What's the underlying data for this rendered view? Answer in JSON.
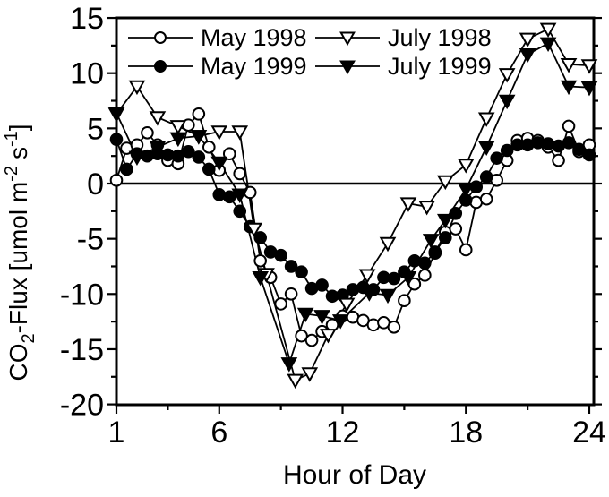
{
  "figure": {
    "background_color": "#ffffff",
    "ink_color": "#000000"
  },
  "axes": {
    "x": {
      "label": "Hour of Day",
      "range": [
        1,
        24
      ],
      "major_ticks": [
        1,
        6,
        12,
        18,
        24
      ],
      "minor_ticks": [
        3.5,
        9,
        15,
        21
      ]
    },
    "y": {
      "label": "CO2-Flux [umol m-2 s-1]",
      "label_parts": {
        "base1": "CO",
        "sub1": "2",
        "base2": "-Flux [umol m",
        "sup1": "-2",
        "base3": "s",
        "sup2": "-1",
        "base4": "]"
      },
      "range": [
        -20,
        15
      ],
      "major_ticks": [
        15,
        10,
        5,
        0,
        -5,
        -10,
        -15,
        -20
      ],
      "minor_ticks": [
        12.5,
        7.5,
        2.5,
        -2.5,
        -7.5,
        -12.5,
        -17.5
      ]
    }
  },
  "chart_data": {
    "type": "line",
    "grid": false,
    "zero_line_y": 0,
    "legend_position": "top-inside-two-columns",
    "series": [
      {
        "name": "May 1998",
        "marker": "circle-open",
        "points": [
          [
            1,
            0.3
          ],
          [
            1.5,
            3.2
          ],
          [
            2,
            3.5
          ],
          [
            2.5,
            4.6
          ],
          [
            3,
            3.5
          ],
          [
            3.5,
            2.1
          ],
          [
            4,
            1.8
          ],
          [
            4.5,
            5.3
          ],
          [
            5,
            6.3
          ],
          [
            5.5,
            3.3
          ],
          [
            6,
            1.2
          ],
          [
            6.5,
            2.7
          ],
          [
            7,
            0.9
          ],
          [
            7.5,
            -0.8
          ],
          [
            8,
            -7
          ],
          [
            8.5,
            -8.5
          ],
          [
            9,
            -10.9
          ],
          [
            9.5,
            -10
          ],
          [
            10,
            -13.8
          ],
          [
            10.5,
            -14.2
          ],
          [
            11,
            -13.4
          ],
          [
            11.5,
            -12.8
          ],
          [
            12,
            -12
          ],
          [
            12.5,
            -12.1
          ],
          [
            13,
            -12.4
          ],
          [
            13.5,
            -12.8
          ],
          [
            14,
            -12.6
          ],
          [
            14.5,
            -13
          ],
          [
            15,
            -10.6
          ],
          [
            15.5,
            -9.1
          ],
          [
            16,
            -8.3
          ],
          [
            16.5,
            -6.3
          ],
          [
            17,
            -4.4
          ],
          [
            17.5,
            -4.1
          ],
          [
            18,
            -6
          ],
          [
            18.5,
            -1.7
          ],
          [
            19,
            -1.4
          ],
          [
            19.5,
            0.3
          ],
          [
            20,
            2.1
          ],
          [
            20.5,
            3.9
          ],
          [
            21,
            4.1
          ],
          [
            21.5,
            3.9
          ],
          [
            22,
            3.3
          ],
          [
            22.5,
            2.1
          ],
          [
            23,
            5.2
          ],
          [
            23.5,
            2.9
          ],
          [
            24,
            3.5
          ]
        ]
      },
      {
        "name": "May 1999",
        "marker": "circle-filled",
        "points": [
          [
            1,
            4
          ],
          [
            1.5,
            1.3
          ],
          [
            2,
            2.7
          ],
          [
            2.5,
            2.5
          ],
          [
            3,
            2.7
          ],
          [
            3.5,
            2.6
          ],
          [
            4,
            2.5
          ],
          [
            4.5,
            2.9
          ],
          [
            5,
            2.4
          ],
          [
            5.5,
            1.3
          ],
          [
            6,
            -1
          ],
          [
            6.5,
            -1.2
          ],
          [
            7,
            -2.5
          ],
          [
            7.5,
            -3.9
          ],
          [
            8,
            -4.9
          ],
          [
            8.5,
            -6.2
          ],
          [
            9,
            -6.5
          ],
          [
            9.5,
            -7.5
          ],
          [
            10,
            -8
          ],
          [
            10.5,
            -9.5
          ],
          [
            11,
            -9.2
          ],
          [
            11.5,
            -10.2
          ],
          [
            12,
            -10.1
          ],
          [
            12.5,
            -9.6
          ],
          [
            13,
            -9.4
          ],
          [
            13.5,
            -9.6
          ],
          [
            14,
            -8.5
          ],
          [
            14.5,
            -8.6
          ],
          [
            15,
            -8
          ],
          [
            15.5,
            -7
          ],
          [
            16,
            -7.2
          ],
          [
            16.5,
            -6.2
          ],
          [
            17,
            -4.9
          ],
          [
            17.5,
            -2.7
          ],
          [
            18,
            -1.5
          ],
          [
            18.5,
            -0.3
          ],
          [
            19,
            0.6
          ],
          [
            19.5,
            2.3
          ],
          [
            20,
            3
          ],
          [
            20.5,
            3.5
          ],
          [
            21,
            3.5
          ],
          [
            21.5,
            3.7
          ],
          [
            22,
            3.6
          ],
          [
            22.5,
            3.4
          ],
          [
            23,
            3.7
          ],
          [
            23.5,
            3.1
          ],
          [
            24,
            2.6
          ]
        ]
      },
      {
        "name": "July 1998",
        "marker": "triangle-open",
        "points": [
          [
            1,
            6.3
          ],
          [
            2,
            8.8
          ],
          [
            3,
            6
          ],
          [
            4,
            5.2
          ],
          [
            5,
            4.3
          ],
          [
            6,
            4.7
          ],
          [
            7,
            4.7
          ],
          [
            7.7,
            -4.1
          ],
          [
            8.3,
            -8.2
          ],
          [
            9.7,
            -17.8
          ],
          [
            10.4,
            -17.2
          ],
          [
            11.3,
            -13.7
          ],
          [
            12.2,
            -10.9
          ],
          [
            13.2,
            -8.3
          ],
          [
            14.2,
            -5.4
          ],
          [
            15.2,
            -1.8
          ],
          [
            16.1,
            -2.1
          ],
          [
            17,
            0.2
          ],
          [
            18,
            1.7
          ],
          [
            19,
            5.9
          ],
          [
            20,
            9.9
          ],
          [
            21,
            13.1
          ],
          [
            22,
            14
          ],
          [
            23,
            10.8
          ],
          [
            24,
            10.7
          ]
        ]
      },
      {
        "name": "July 1999",
        "marker": "triangle-filled",
        "points": [
          [
            1,
            6.4
          ],
          [
            2,
            2.4
          ],
          [
            3,
            3.3
          ],
          [
            4,
            4.1
          ],
          [
            5,
            4.3
          ],
          [
            6,
            1.9
          ],
          [
            7,
            -1
          ],
          [
            8,
            -8.5
          ],
          [
            9.4,
            -16.3
          ],
          [
            10.2,
            -11.8
          ],
          [
            11,
            -12
          ],
          [
            11.9,
            -12.4
          ],
          [
            13.3,
            -9.9
          ],
          [
            14.2,
            -10.1
          ],
          [
            15.2,
            -8.5
          ],
          [
            16.3,
            -5.1
          ],
          [
            17,
            -3.3
          ],
          [
            18,
            -0.5
          ],
          [
            19,
            3.3
          ],
          [
            20,
            7.5
          ],
          [
            21,
            11.7
          ],
          [
            22,
            12.7
          ],
          [
            23,
            8.8
          ],
          [
            24,
            8.7
          ]
        ]
      }
    ]
  }
}
